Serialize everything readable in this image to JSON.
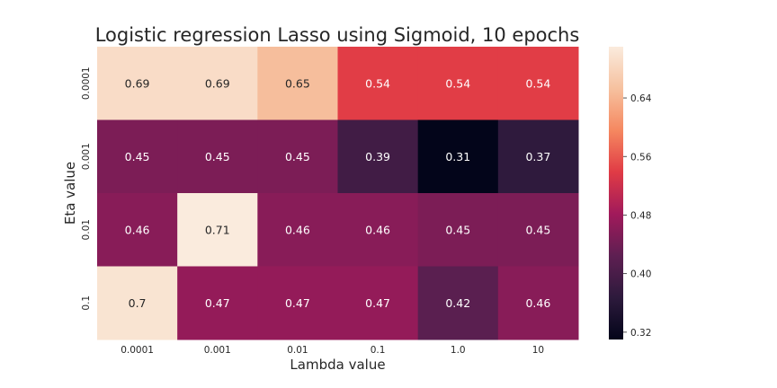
{
  "chart_data": {
    "type": "heatmap",
    "title": "Logistic regression Lasso using Sigmoid, 10 epochs",
    "xlabel": "Lambda value",
    "ylabel": "Eta value",
    "x_categories": [
      "0.0001",
      "0.001",
      "0.01",
      "0.1",
      "1.0",
      "10"
    ],
    "y_categories": [
      "0.0001",
      "0.001",
      "0.01",
      "0.1"
    ],
    "values": [
      [
        0.69,
        0.69,
        0.65,
        0.54,
        0.54,
        0.54
      ],
      [
        0.45,
        0.45,
        0.45,
        0.39,
        0.31,
        0.37
      ],
      [
        0.46,
        0.71,
        0.46,
        0.46,
        0.45,
        0.45
      ],
      [
        0.7,
        0.47,
        0.47,
        0.47,
        0.42,
        0.46
      ]
    ],
    "cell_labels": [
      [
        "0.69",
        "0.69",
        "0.65",
        "0.54",
        "0.54",
        "0.54"
      ],
      [
        "0.45",
        "0.45",
        "0.45",
        "0.39",
        "0.31",
        "0.37"
      ],
      [
        "0.46",
        "0.71",
        "0.46",
        "0.46",
        "0.45",
        "0.45"
      ],
      [
        "0.7",
        "0.47",
        "0.47",
        "0.47",
        "0.42",
        "0.46"
      ]
    ],
    "colorbar": {
      "range": [
        0.31,
        0.71
      ],
      "ticks": [
        "0.32",
        "0.40",
        "0.48",
        "0.56",
        "0.64"
      ],
      "tick_values": [
        0.32,
        0.4,
        0.48,
        0.56,
        0.64
      ]
    },
    "colormap": "rocket",
    "colormap_stops": [
      "#03051a",
      "#2d1a3c",
      "#5e1f52",
      "#a11a5b",
      "#e03b45",
      "#f58860",
      "#f6c19f",
      "#faebdd"
    ]
  }
}
